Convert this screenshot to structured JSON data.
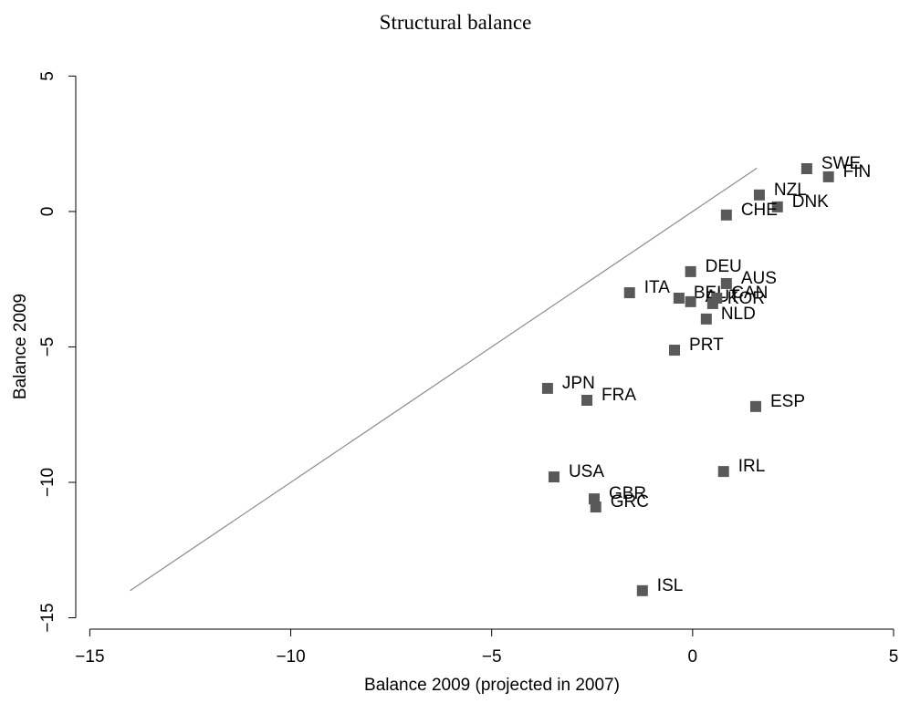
{
  "chart_data": {
    "type": "scatter",
    "title": "Structural balance",
    "x_label": "Balance 2009 (projected in 2007)",
    "y_label": "Balance 2009",
    "xlim": [
      -15.35,
      5.25
    ],
    "ylim": [
      -15.42,
      5.62
    ],
    "xticks": [
      {
        "value": -15,
        "label": "−15"
      },
      {
        "value": -10,
        "label": "−10"
      },
      {
        "value": -5,
        "label": "−5"
      },
      0,
      5
    ],
    "yticks": [
      {
        "value": -15,
        "label": "−15"
      },
      {
        "value": -10,
        "label": "−10"
      },
      {
        "value": -5,
        "label": "−5"
      },
      0,
      5
    ],
    "reference_line": {
      "x": [
        -14,
        1.6
      ],
      "y": [
        -14,
        1.6
      ],
      "color": "#8c8c8c"
    },
    "series": [
      {
        "color": "#595959",
        "labels": [
          "SWE",
          "FIN",
          "NZL",
          "DNK",
          "CHE",
          "DEU",
          "AUS",
          "ITA",
          "BEL",
          "AUT",
          "CAN",
          "KOR",
          "NLD",
          "PRT",
          "JPN",
          "FRA",
          "ESP",
          "IRL",
          "USA",
          "GBR",
          "GRC",
          "ISL"
        ],
        "x": [
          2.84,
          3.38,
          1.66,
          2.11,
          0.84,
          -0.05,
          0.84,
          -1.57,
          -0.34,
          -0.05,
          0.6,
          0.5,
          0.34,
          -0.45,
          -3.61,
          -2.63,
          1.57,
          0.77,
          -3.45,
          -2.45,
          -2.41,
          -1.25
        ],
        "values": [
          1.58,
          1.28,
          0.61,
          0.17,
          -0.13,
          -2.22,
          -2.66,
          -3.0,
          -3.2,
          -3.33,
          -3.2,
          -3.4,
          -3.97,
          -5.12,
          -6.53,
          -6.97,
          -7.2,
          -9.6,
          -9.8,
          -10.61,
          -10.91,
          -14.0
        ]
      }
    ]
  }
}
